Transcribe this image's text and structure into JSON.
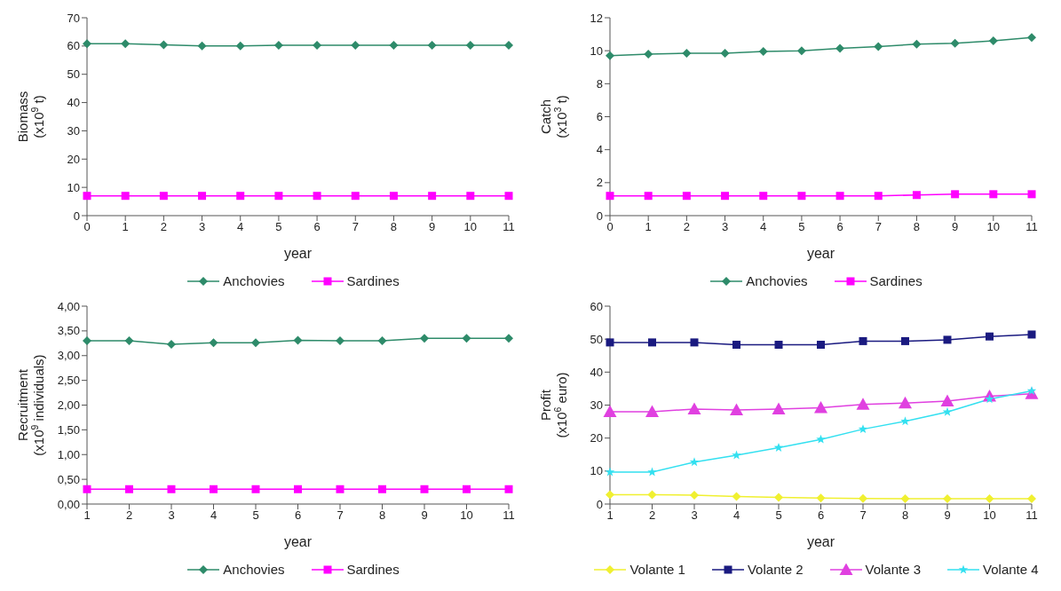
{
  "chart_data": [
    {
      "type": "line",
      "ylabel": "Biomass\n(x10$^{9}$ t)",
      "xlabel": "year",
      "categories": [
        "0",
        "1",
        "2",
        "3",
        "4",
        "5",
        "6",
        "7",
        "8",
        "9",
        "10",
        "11"
      ],
      "ylim": [
        0,
        70
      ],
      "yticks": [
        0,
        10,
        20,
        30,
        40,
        50,
        60,
        70
      ],
      "legend": "bottom",
      "series": [
        {
          "name": "Anchovies",
          "color": "#2e8b6a",
          "marker": "diamond",
          "values": [
            60.8,
            60.8,
            60.4,
            60,
            60,
            60.3,
            60.3,
            60.3,
            60.3,
            60.3,
            60.3,
            60.3
          ]
        },
        {
          "name": "Sardines",
          "color": "#ff00ff",
          "marker": "square",
          "values": [
            7,
            7,
            7,
            7,
            7,
            7,
            7,
            7,
            7,
            7,
            7,
            7
          ]
        }
      ]
    },
    {
      "type": "line",
      "ylabel": "Catch\n(x10$^{3}$ t)",
      "xlabel": "year",
      "categories": [
        "0",
        "1",
        "2",
        "3",
        "4",
        "5",
        "6",
        "7",
        "8",
        "9",
        "10",
        "11"
      ],
      "ylim": [
        0,
        12
      ],
      "yticks": [
        0,
        2,
        4,
        6,
        8,
        10,
        12
      ],
      "legend": "bottom",
      "series": [
        {
          "name": "Anchovies",
          "color": "#2e8b6a",
          "marker": "diamond",
          "values": [
            9.7,
            9.8,
            9.85,
            9.85,
            9.95,
            10,
            10.15,
            10.25,
            10.4,
            10.45,
            10.6,
            10.8
          ]
        },
        {
          "name": "Sardines",
          "color": "#ff00ff",
          "marker": "square",
          "values": [
            1.2,
            1.2,
            1.2,
            1.2,
            1.2,
            1.2,
            1.2,
            1.2,
            1.25,
            1.3,
            1.3,
            1.3
          ]
        }
      ]
    },
    {
      "type": "line",
      "ylabel": "Recruitment\n(x10$^{9}$ individuals)",
      "xlabel": "year",
      "categories": [
        "1",
        "2",
        "3",
        "4",
        "5",
        "6",
        "7",
        "8",
        "9",
        "10",
        "11"
      ],
      "ylim": [
        0,
        4
      ],
      "yticks": [
        {
          "value": 0,
          "label": "0,00"
        },
        {
          "value": 0.5,
          "label": "0,50"
        },
        {
          "value": 1,
          "label": "1,00"
        },
        {
          "value": 1.5,
          "label": "1,50"
        },
        {
          "value": 2,
          "label": "2,00"
        },
        {
          "value": 2.5,
          "label": "2,50"
        },
        {
          "value": 3,
          "label": "3,00"
        },
        {
          "value": 3.5,
          "label": "3,50"
        },
        {
          "value": 4,
          "label": "4,00"
        }
      ],
      "legend": "bottom",
      "series": [
        {
          "name": "Anchovies",
          "color": "#2e8b6a",
          "marker": "diamond",
          "values": [
            3.3,
            3.3,
            3.23,
            3.26,
            3.26,
            3.31,
            3.3,
            3.3,
            3.35,
            3.35,
            3.35
          ]
        },
        {
          "name": "Sardines",
          "color": "#ff00ff",
          "marker": "square",
          "values": [
            0.3,
            0.3,
            0.3,
            0.3,
            0.3,
            0.3,
            0.3,
            0.3,
            0.3,
            0.3,
            0.3
          ]
        }
      ]
    },
    {
      "type": "line",
      "ylabel": "Profit\n(x10$^{6}$ euro)",
      "xlabel": "year",
      "categories": [
        "1",
        "2",
        "3",
        "4",
        "5",
        "6",
        "7",
        "8",
        "9",
        "10",
        "11"
      ],
      "ylim": [
        0,
        60
      ],
      "yticks": [
        0,
        10,
        20,
        30,
        40,
        50,
        60
      ],
      "legend": "bottom",
      "series": [
        {
          "name": "Volante 1",
          "color": "#f0f030",
          "marker": "diamond",
          "values": [
            2.8,
            2.8,
            2.7,
            2.3,
            2,
            1.8,
            1.7,
            1.6,
            1.6,
            1.6,
            1.6
          ]
        },
        {
          "name": "Volante 2",
          "color": "#1a1a80",
          "marker": "square",
          "values": [
            49,
            49,
            49,
            48.3,
            48.3,
            48.3,
            49.4,
            49.4,
            49.8,
            50.8,
            51.4
          ]
        },
        {
          "name": "Volante 3",
          "color": "#e040e0",
          "marker": "triangle",
          "values": [
            28,
            28,
            28.8,
            28.5,
            28.8,
            29.2,
            30.2,
            30.6,
            31.2,
            32.7,
            33.4
          ]
        },
        {
          "name": "Volante 4",
          "color": "#33e0f0",
          "marker": "star",
          "values": [
            9.7,
            9.7,
            12.7,
            14.8,
            17.1,
            19.6,
            22.7,
            25.1,
            27.9,
            31.8,
            34.3
          ]
        }
      ]
    }
  ]
}
